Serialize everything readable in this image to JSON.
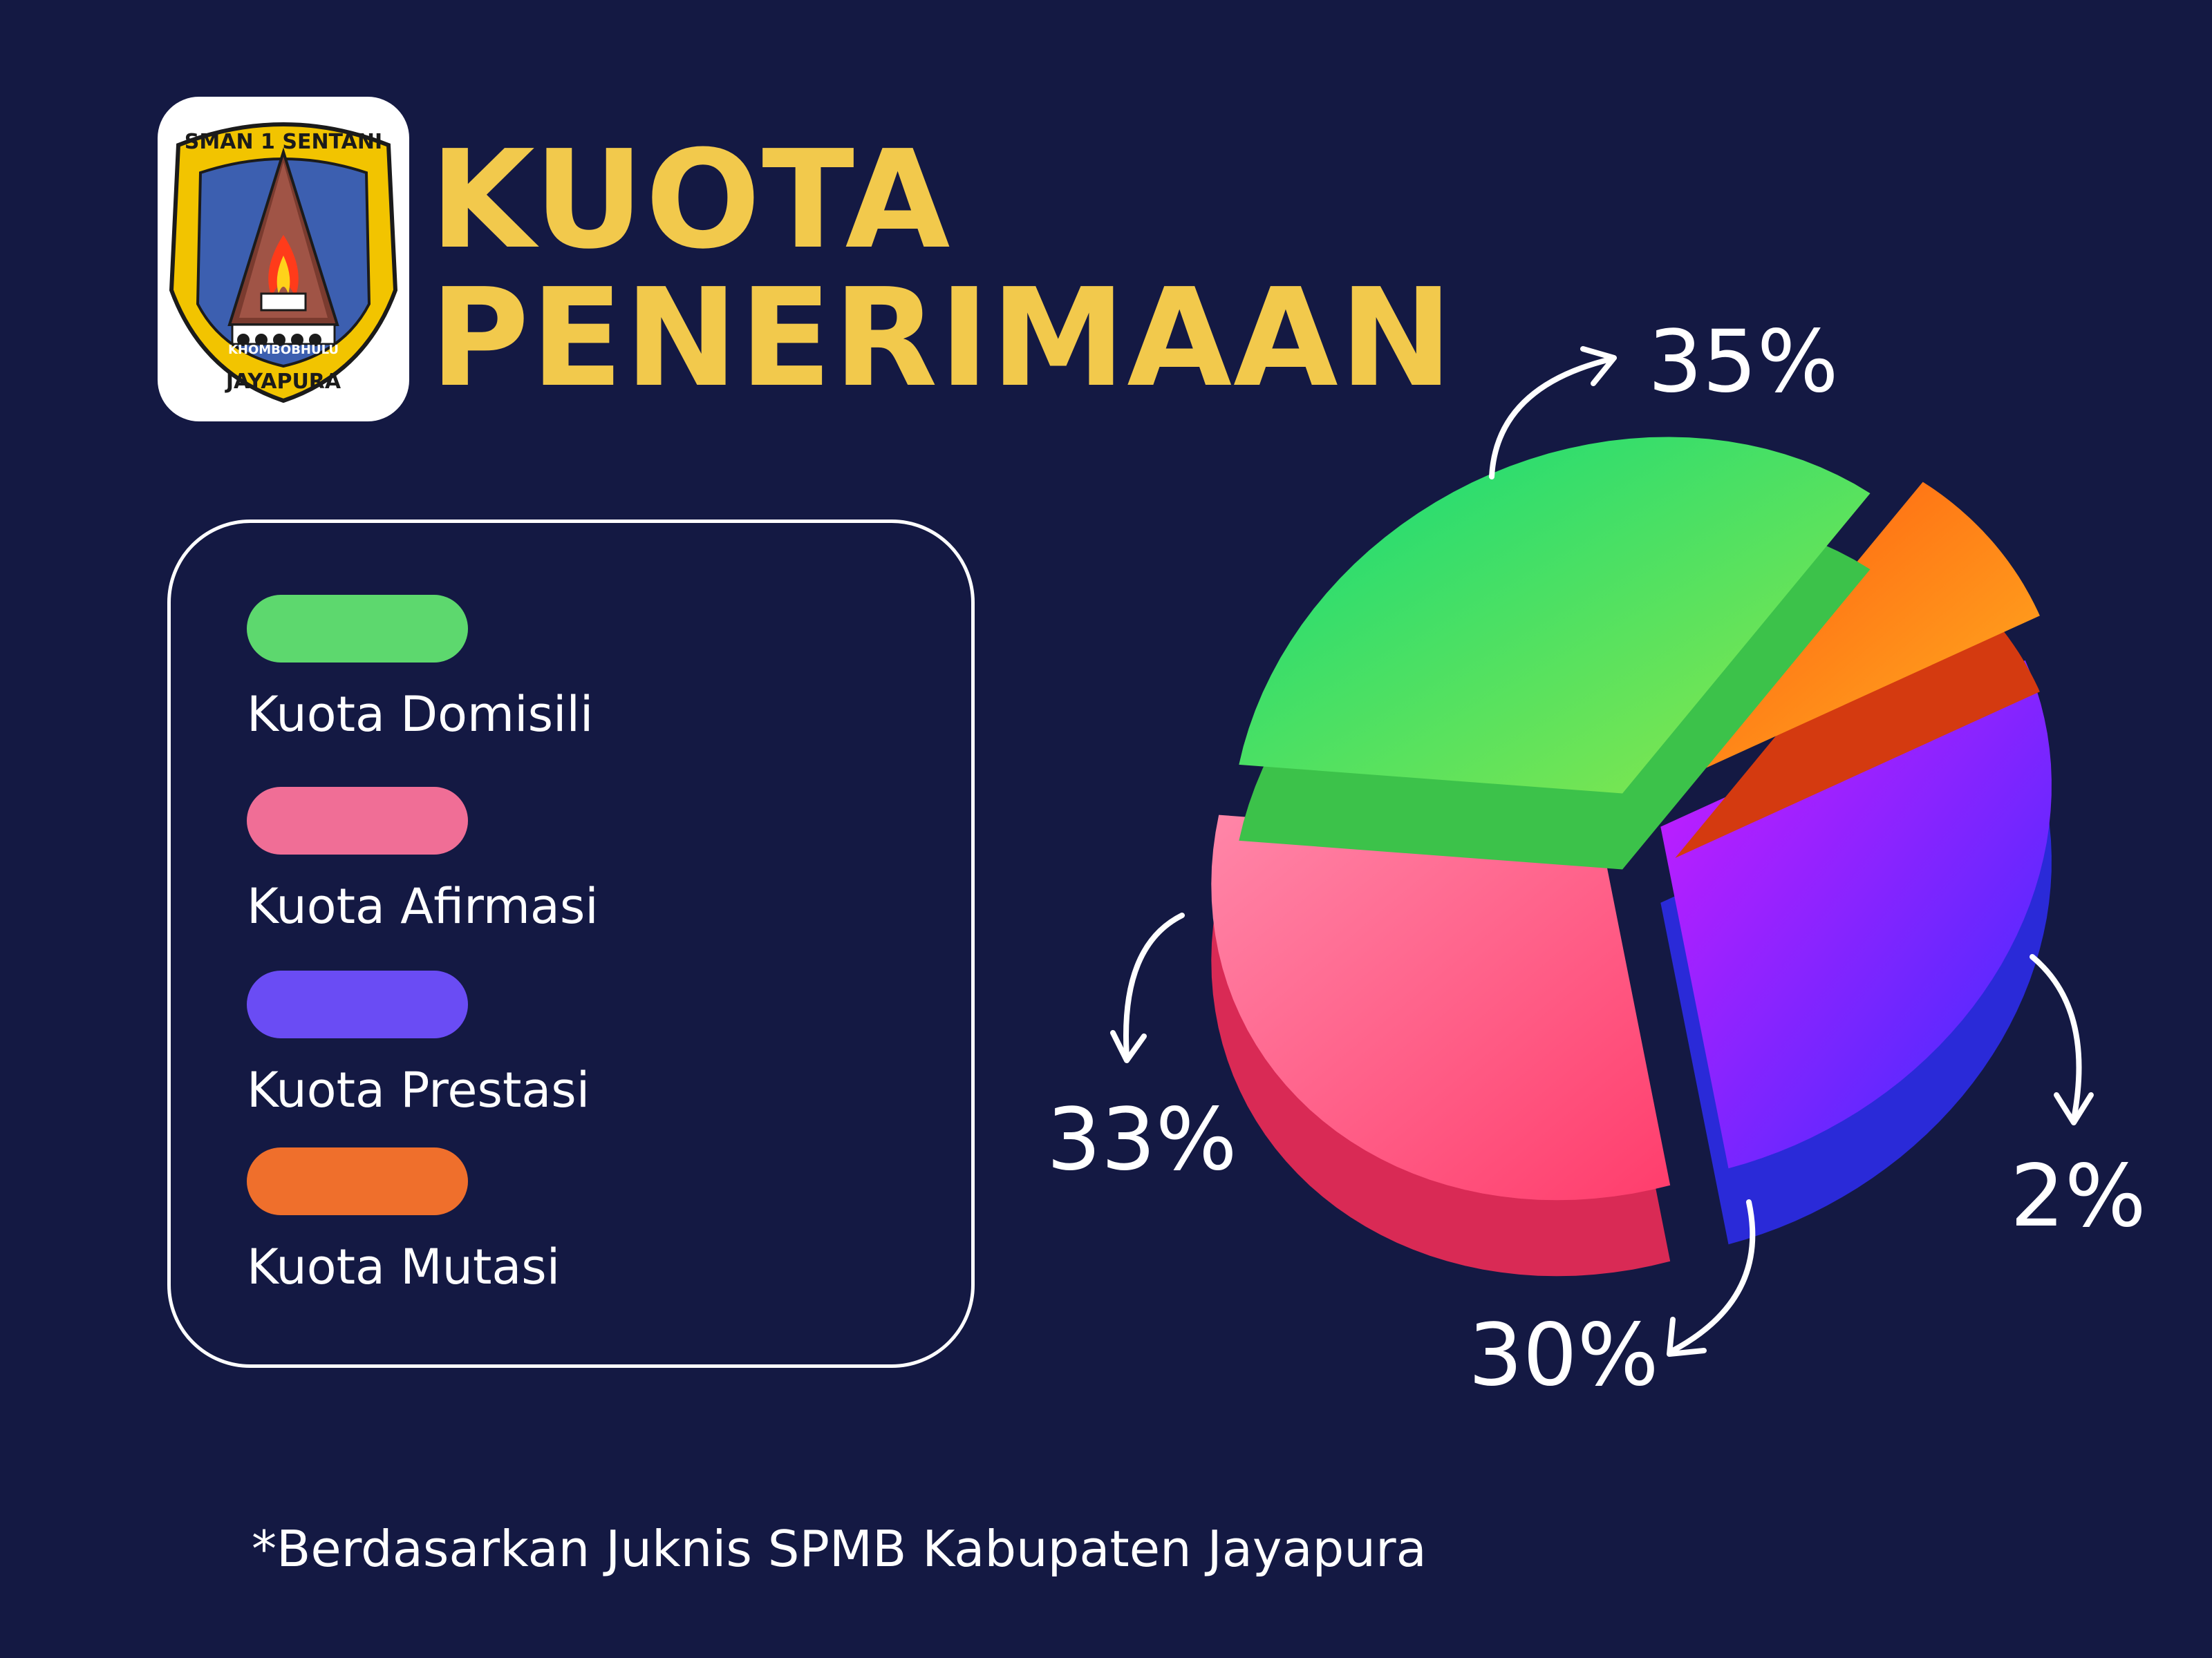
{
  "header": {
    "title_line1": "KUOTA",
    "title_line2": "PENERIMAAN"
  },
  "logo": {
    "top_text": "SMAN 1 SENTANI",
    "mid_text": "KHOMBOBHULU",
    "bottom_text": "JAYAPURA"
  },
  "legend": {
    "items": [
      {
        "label": "Kuota Domisili",
        "color": "#5dd86e"
      },
      {
        "label": "Kuota Afirmasi",
        "color": "#f06e96"
      },
      {
        "label": "Kuota Prestasi",
        "color": "#6a4cf4"
      },
      {
        "label": "Kuota Mutasi",
        "color": "#ef6f2c"
      }
    ]
  },
  "chart_data": {
    "type": "pie",
    "categories": [
      "Kuota Domisili",
      "Kuota Afirmasi",
      "Kuota Prestasi",
      "Kuota Mutasi"
    ],
    "values": [
      35,
      33,
      30,
      2
    ],
    "labels": [
      "35%",
      "33%",
      "30%",
      "2%"
    ],
    "colors": [
      "#2ee07a",
      "#ff6f98",
      "#a726ff",
      "#ff7a10"
    ],
    "style": "3D exploded pie"
  },
  "footnote": "*Berdasarkan Juknis SPMB Kabupaten Jayapura"
}
